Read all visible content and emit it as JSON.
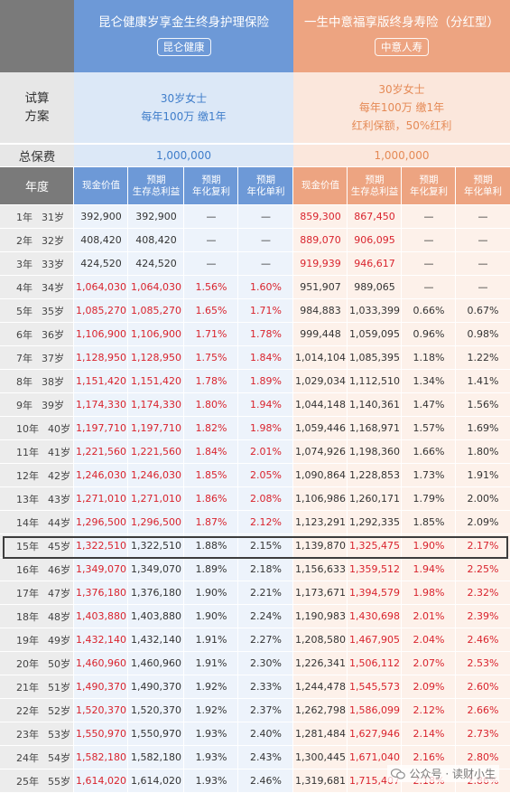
{
  "header": {
    "product_a": {
      "title": "昆仑健康岁享金生终身护理保险",
      "brand": "昆仑健康"
    },
    "product_b": {
      "title": "一生中意福享版终身寿险（分红型）",
      "brand": "中意人寿"
    }
  },
  "plan": {
    "label_line1": "试算",
    "label_line2": "方案",
    "a_line1": "30岁女士",
    "a_line2": "每年100万 缴1年",
    "b_line1": "30岁女士",
    "b_line2": "每年100万 缴1年",
    "b_line3": "红利保额，50%红利"
  },
  "premium": {
    "label": "总保费",
    "a": "1,000,000",
    "b": "1,000,000"
  },
  "columns": {
    "year": "年度",
    "a": [
      {
        "line1": "现金价值",
        "line2": ""
      },
      {
        "line1": "预期",
        "line2": "生存总利益"
      },
      {
        "line1": "预期",
        "line2": "年化复利"
      },
      {
        "line1": "预期",
        "line2": "年化单利"
      }
    ],
    "b": [
      {
        "line1": "现金价值",
        "line2": ""
      },
      {
        "line1": "预期",
        "line2": "生存总利益"
      },
      {
        "line1": "预期",
        "line2": "年化复利"
      },
      {
        "line1": "预期",
        "line2": "年化单利"
      }
    ]
  },
  "rows": [
    {
      "year": "1年",
      "age": "31岁",
      "a": [
        "392,900",
        "392,900",
        "—",
        "—"
      ],
      "b": [
        "859,300",
        "867,450",
        "—",
        "—"
      ],
      "red_a": [
        false,
        false,
        false,
        false
      ],
      "red_b": [
        true,
        true,
        false,
        false
      ]
    },
    {
      "year": "2年",
      "age": "32岁",
      "a": [
        "408,420",
        "408,420",
        "—",
        "—"
      ],
      "b": [
        "889,070",
        "906,095",
        "—",
        "—"
      ],
      "red_a": [
        false,
        false,
        false,
        false
      ],
      "red_b": [
        true,
        true,
        false,
        false
      ]
    },
    {
      "year": "3年",
      "age": "33岁",
      "a": [
        "424,520",
        "424,520",
        "—",
        "—"
      ],
      "b": [
        "919,939",
        "946,617",
        "—",
        "—"
      ],
      "red_a": [
        false,
        false,
        false,
        false
      ],
      "red_b": [
        true,
        true,
        false,
        false
      ]
    },
    {
      "year": "4年",
      "age": "34岁",
      "a": [
        "1,064,030",
        "1,064,030",
        "1.56%",
        "1.60%"
      ],
      "b": [
        "951,907",
        "989,065",
        "—",
        "—"
      ],
      "red_a": [
        true,
        true,
        true,
        true
      ],
      "red_b": [
        false,
        false,
        false,
        false
      ]
    },
    {
      "year": "5年",
      "age": "35岁",
      "a": [
        "1,085,270",
        "1,085,270",
        "1.65%",
        "1.71%"
      ],
      "b": [
        "984,883",
        "1,033,399",
        "0.66%",
        "0.67%"
      ],
      "red_a": [
        true,
        true,
        true,
        true
      ],
      "red_b": [
        false,
        false,
        false,
        false
      ]
    },
    {
      "year": "6年",
      "age": "36岁",
      "a": [
        "1,106,900",
        "1,106,900",
        "1.71%",
        "1.78%"
      ],
      "b": [
        "999,448",
        "1,059,095",
        "0.96%",
        "0.98%"
      ],
      "red_a": [
        true,
        true,
        true,
        true
      ],
      "red_b": [
        false,
        false,
        false,
        false
      ]
    },
    {
      "year": "7年",
      "age": "37岁",
      "a": [
        "1,128,950",
        "1,128,950",
        "1.75%",
        "1.84%"
      ],
      "b": [
        "1,014,104",
        "1,085,395",
        "1.18%",
        "1.22%"
      ],
      "red_a": [
        true,
        true,
        true,
        true
      ],
      "red_b": [
        false,
        false,
        false,
        false
      ]
    },
    {
      "year": "8年",
      "age": "38岁",
      "a": [
        "1,151,420",
        "1,151,420",
        "1.78%",
        "1.89%"
      ],
      "b": [
        "1,029,034",
        "1,112,510",
        "1.34%",
        "1.41%"
      ],
      "red_a": [
        true,
        true,
        true,
        true
      ],
      "red_b": [
        false,
        false,
        false,
        false
      ]
    },
    {
      "year": "9年",
      "age": "39岁",
      "a": [
        "1,174,330",
        "1,174,330",
        "1.80%",
        "1.94%"
      ],
      "b": [
        "1,044,148",
        "1,140,361",
        "1.47%",
        "1.56%"
      ],
      "red_a": [
        true,
        true,
        true,
        true
      ],
      "red_b": [
        false,
        false,
        false,
        false
      ]
    },
    {
      "year": "10年",
      "age": "40岁",
      "a": [
        "1,197,710",
        "1,197,710",
        "1.82%",
        "1.98%"
      ],
      "b": [
        "1,059,446",
        "1,168,971",
        "1.57%",
        "1.69%"
      ],
      "red_a": [
        true,
        true,
        true,
        true
      ],
      "red_b": [
        false,
        false,
        false,
        false
      ]
    },
    {
      "year": "11年",
      "age": "41岁",
      "a": [
        "1,221,560",
        "1,221,560",
        "1.84%",
        "2.01%"
      ],
      "b": [
        "1,074,926",
        "1,198,360",
        "1.66%",
        "1.80%"
      ],
      "red_a": [
        true,
        true,
        true,
        true
      ],
      "red_b": [
        false,
        false,
        false,
        false
      ]
    },
    {
      "year": "12年",
      "age": "42岁",
      "a": [
        "1,246,030",
        "1,246,030",
        "1.85%",
        "2.05%"
      ],
      "b": [
        "1,090,864",
        "1,228,853",
        "1.73%",
        "1.91%"
      ],
      "red_a": [
        true,
        true,
        true,
        true
      ],
      "red_b": [
        false,
        false,
        false,
        false
      ]
    },
    {
      "year": "13年",
      "age": "43岁",
      "a": [
        "1,271,010",
        "1,271,010",
        "1.86%",
        "2.08%"
      ],
      "b": [
        "1,106,986",
        "1,260,171",
        "1.79%",
        "2.00%"
      ],
      "red_a": [
        true,
        true,
        true,
        true
      ],
      "red_b": [
        false,
        false,
        false,
        false
      ]
    },
    {
      "year": "14年",
      "age": "44岁",
      "a": [
        "1,296,500",
        "1,296,500",
        "1.87%",
        "2.12%"
      ],
      "b": [
        "1,123,291",
        "1,292,335",
        "1.85%",
        "2.09%"
      ],
      "red_a": [
        true,
        true,
        true,
        true
      ],
      "red_b": [
        false,
        false,
        false,
        false
      ]
    },
    {
      "year": "15年",
      "age": "45岁",
      "a": [
        "1,322,510",
        "1,322,510",
        "1.88%",
        "2.15%"
      ],
      "b": [
        "1,139,870",
        "1,325,475",
        "1.90%",
        "2.17%"
      ],
      "red_a": [
        true,
        false,
        false,
        false
      ],
      "red_b": [
        false,
        true,
        true,
        true
      ]
    },
    {
      "year": "16年",
      "age": "46岁",
      "a": [
        "1,349,070",
        "1,349,070",
        "1.89%",
        "2.18%"
      ],
      "b": [
        "1,156,633",
        "1,359,512",
        "1.94%",
        "2.25%"
      ],
      "red_a": [
        true,
        false,
        false,
        false
      ],
      "red_b": [
        false,
        true,
        true,
        true
      ]
    },
    {
      "year": "17年",
      "age": "47岁",
      "a": [
        "1,376,180",
        "1,376,180",
        "1.90%",
        "2.21%"
      ],
      "b": [
        "1,173,671",
        "1,394,579",
        "1.98%",
        "2.32%"
      ],
      "red_a": [
        true,
        false,
        false,
        false
      ],
      "red_b": [
        false,
        true,
        true,
        true
      ]
    },
    {
      "year": "18年",
      "age": "48岁",
      "a": [
        "1,403,880",
        "1,403,880",
        "1.90%",
        "2.24%"
      ],
      "b": [
        "1,190,983",
        "1,430,698",
        "2.01%",
        "2.39%"
      ],
      "red_a": [
        true,
        false,
        false,
        false
      ],
      "red_b": [
        false,
        true,
        true,
        true
      ]
    },
    {
      "year": "19年",
      "age": "49岁",
      "a": [
        "1,432,140",
        "1,432,140",
        "1.91%",
        "2.27%"
      ],
      "b": [
        "1,208,580",
        "1,467,905",
        "2.04%",
        "2.46%"
      ],
      "red_a": [
        true,
        false,
        false,
        false
      ],
      "red_b": [
        false,
        true,
        true,
        true
      ]
    },
    {
      "year": "20年",
      "age": "50岁",
      "a": [
        "1,460,960",
        "1,460,960",
        "1.91%",
        "2.30%"
      ],
      "b": [
        "1,226,341",
        "1,506,112",
        "2.07%",
        "2.53%"
      ],
      "red_a": [
        true,
        false,
        false,
        false
      ],
      "red_b": [
        false,
        true,
        true,
        true
      ]
    },
    {
      "year": "21年",
      "age": "51岁",
      "a": [
        "1,490,370",
        "1,490,370",
        "1.92%",
        "2.33%"
      ],
      "b": [
        "1,244,478",
        "1,545,573",
        "2.09%",
        "2.60%"
      ],
      "red_a": [
        true,
        false,
        false,
        false
      ],
      "red_b": [
        false,
        true,
        true,
        true
      ]
    },
    {
      "year": "22年",
      "age": "52岁",
      "a": [
        "1,520,370",
        "1,520,370",
        "1.92%",
        "2.37%"
      ],
      "b": [
        "1,262,798",
        "1,586,099",
        "2.12%",
        "2.66%"
      ],
      "red_a": [
        true,
        false,
        false,
        false
      ],
      "red_b": [
        false,
        true,
        true,
        true
      ]
    },
    {
      "year": "23年",
      "age": "53岁",
      "a": [
        "1,550,970",
        "1,550,970",
        "1.93%",
        "2.40%"
      ],
      "b": [
        "1,281,484",
        "1,627,946",
        "2.14%",
        "2.73%"
      ],
      "red_a": [
        true,
        false,
        false,
        false
      ],
      "red_b": [
        false,
        true,
        true,
        true
      ]
    },
    {
      "year": "24年",
      "age": "54岁",
      "a": [
        "1,582,180",
        "1,582,180",
        "1.93%",
        "2.43%"
      ],
      "b": [
        "1,300,445",
        "1,671,040",
        "2.16%",
        "2.80%"
      ],
      "red_a": [
        true,
        false,
        false,
        false
      ],
      "red_b": [
        false,
        true,
        true,
        true
      ]
    },
    {
      "year": "25年",
      "age": "55岁",
      "a": [
        "1,614,020",
        "1,614,020",
        "1.93%",
        "2.46%"
      ],
      "b": [
        "1,319,681",
        "1,715,407",
        "2.18%",
        "2.86%"
      ],
      "red_a": [
        true,
        false,
        false,
        false
      ],
      "red_b": [
        false,
        true,
        true,
        true
      ]
    }
  ],
  "highlight_row_year": "15年",
  "watermark": {
    "text": "公众号 · 读财小生",
    "icon": "wechat-icon"
  }
}
